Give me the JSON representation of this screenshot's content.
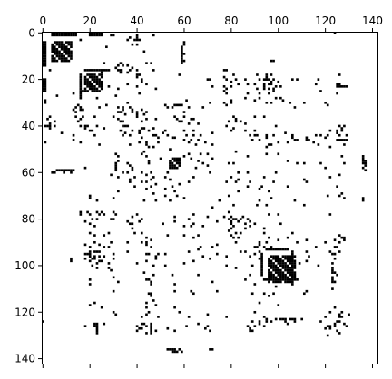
{
  "chart_data": {
    "type": "heatmap",
    "title": "",
    "xlabel": "",
    "ylabel": "",
    "size": 143,
    "xlim": [
      0,
      143
    ],
    "ylim": [
      143,
      0
    ],
    "x_ticks": [
      0,
      20,
      40,
      60,
      80,
      100,
      120,
      140
    ],
    "y_ticks": [
      0,
      20,
      40,
      60,
      80,
      100,
      120,
      140
    ],
    "x_tick_labels": [
      "0",
      "20",
      "40",
      "60",
      "80",
      "100",
      "120",
      "140"
    ],
    "y_tick_labels": [
      "0",
      "20",
      "40",
      "60",
      "80",
      "100",
      "120",
      "140"
    ],
    "x_axis_position": "top",
    "grid": false,
    "colormap": "binary",
    "colors": {
      "filled": "#000000",
      "empty": "#ffffff"
    },
    "dense_blocks": [
      {
        "rows": [
          4,
          12
        ],
        "cols": [
          4,
          12
        ]
      },
      {
        "rows": [
          18,
          24
        ],
        "cols": [
          18,
          25
        ]
      },
      {
        "rows": [
          54,
          58
        ],
        "cols": [
          54,
          58
        ]
      },
      {
        "rows": [
          97,
          107
        ],
        "cols": [
          96,
          107
        ]
      }
    ],
    "bands": [
      {
        "rows": [
          0,
          1
        ],
        "cols": [
          4,
          14
        ]
      },
      {
        "rows": [
          0,
          1
        ],
        "cols": [
          20,
          25
        ]
      },
      {
        "rows": [
          16,
          16
        ],
        "cols": [
          18,
          28
        ]
      },
      {
        "rows": [
          59,
          59
        ],
        "cols": [
          6,
          13
        ]
      },
      {
        "rows": [
          93,
          93
        ],
        "cols": [
          95,
          104
        ]
      },
      {
        "rows": [
          106,
          106
        ],
        "cols": [
          94,
          108
        ]
      },
      {
        "rows": [
          23,
          23
        ],
        "cols": [
          125,
          129
        ]
      },
      {
        "rows": [
          46,
          46
        ],
        "cols": [
          125,
          129
        ]
      }
    ],
    "points": [
      [
        2,
        40
      ],
      [
        3,
        40
      ],
      [
        5,
        60
      ],
      [
        8,
        59
      ],
      [
        9,
        60
      ],
      [
        12,
        60
      ],
      [
        16,
        3
      ],
      [
        16,
        26
      ],
      [
        16,
        33
      ],
      [
        17,
        36
      ],
      [
        18,
        40
      ],
      [
        19,
        40
      ],
      [
        21,
        42
      ],
      [
        20,
        70
      ],
      [
        19,
        95
      ],
      [
        20,
        95
      ],
      [
        22,
        94
      ],
      [
        23,
        94
      ],
      [
        24,
        96
      ],
      [
        25,
        98
      ],
      [
        22,
        126
      ],
      [
        26,
        125
      ],
      [
        18,
        126
      ],
      [
        20,
        96
      ],
      [
        21,
        97
      ],
      [
        23,
        99
      ],
      [
        29,
        1
      ],
      [
        30,
        1
      ],
      [
        27,
        6
      ],
      [
        26,
        13
      ],
      [
        28,
        16
      ],
      [
        25,
        17
      ],
      [
        23,
        28
      ],
      [
        24,
        32
      ],
      [
        22,
        36
      ],
      [
        26,
        41
      ],
      [
        27,
        31
      ],
      [
        23,
        80
      ],
      [
        29,
        80
      ],
      [
        30,
        80
      ],
      [
        28,
        86
      ],
      [
        30,
        36
      ],
      [
        29,
        90
      ],
      [
        21,
        80
      ],
      [
        26,
        87
      ],
      [
        31,
        15
      ],
      [
        32,
        14
      ],
      [
        33,
        13
      ],
      [
        34,
        14
      ],
      [
        32,
        16
      ],
      [
        33,
        17
      ],
      [
        31,
        56
      ],
      [
        31,
        57
      ],
      [
        31,
        58
      ],
      [
        31,
        59
      ],
      [
        32,
        32
      ],
      [
        33,
        34
      ],
      [
        34,
        32
      ],
      [
        35,
        35
      ],
      [
        33,
        38
      ],
      [
        34,
        40
      ],
      [
        33,
        42
      ],
      [
        35,
        43
      ],
      [
        34,
        44
      ],
      [
        36,
        3
      ],
      [
        37,
        2
      ],
      [
        36,
        14
      ],
      [
        37,
        16
      ],
      [
        38,
        15
      ],
      [
        38,
        5
      ],
      [
        39,
        3
      ],
      [
        37,
        32
      ],
      [
        38,
        34
      ],
      [
        36,
        40
      ],
      [
        38,
        42
      ],
      [
        37,
        44
      ],
      [
        36,
        60
      ],
      [
        37,
        64
      ],
      [
        38,
        58
      ],
      [
        39,
        62
      ],
      [
        37,
        82
      ],
      [
        38,
        84
      ],
      [
        39,
        86
      ],
      [
        36,
        90
      ],
      [
        40,
        1
      ],
      [
        40,
        5
      ],
      [
        41,
        3
      ],
      [
        40,
        16
      ],
      [
        41,
        18
      ],
      [
        40,
        23
      ],
      [
        41,
        26
      ],
      [
        40,
        35
      ],
      [
        42,
        38
      ],
      [
        41,
        42
      ],
      [
        43,
        8
      ],
      [
        44,
        13
      ],
      [
        42,
        20
      ],
      [
        44,
        22
      ],
      [
        43,
        41
      ],
      [
        42,
        45
      ],
      [
        44,
        47
      ],
      [
        45,
        49
      ],
      [
        43,
        51
      ],
      [
        44,
        53
      ],
      [
        45,
        56
      ],
      [
        46,
        60
      ],
      [
        44,
        64
      ],
      [
        46,
        66
      ],
      [
        43,
        72
      ],
      [
        44,
        90
      ],
      [
        46,
        92
      ],
      [
        45,
        95
      ],
      [
        47,
        100
      ],
      [
        43,
        103
      ],
      [
        45,
        106
      ],
      [
        46,
        112
      ],
      [
        47,
        115
      ],
      [
        44,
        118
      ],
      [
        42,
        122
      ],
      [
        43,
        125
      ],
      [
        44,
        129
      ],
      [
        46,
        128
      ],
      [
        47,
        1
      ],
      [
        46,
        13
      ],
      [
        47,
        16
      ],
      [
        48,
        24
      ],
      [
        48,
        37
      ],
      [
        47,
        41
      ],
      [
        48,
        44
      ],
      [
        49,
        47
      ],
      [
        47,
        62
      ],
      [
        48,
        65
      ],
      [
        47,
        69
      ],
      [
        48,
        72
      ],
      [
        49,
        95
      ],
      [
        48,
        97
      ],
      [
        47,
        104
      ],
      [
        46,
        108
      ],
      [
        49,
        122
      ],
      [
        52,
        31
      ],
      [
        53,
        32
      ],
      [
        55,
        32
      ],
      [
        57,
        31
      ],
      [
        52,
        42
      ],
      [
        53,
        44
      ],
      [
        56,
        36
      ],
      [
        57,
        37
      ],
      [
        55,
        45
      ],
      [
        54,
        50
      ],
      [
        53,
        60
      ],
      [
        52,
        62
      ],
      [
        55,
        66
      ],
      [
        54,
        72
      ],
      [
        56,
        68
      ],
      [
        57,
        70
      ],
      [
        53,
        87
      ],
      [
        52,
        100
      ],
      [
        55,
        104
      ],
      [
        56,
        108
      ],
      [
        54,
        136
      ],
      [
        55,
        137
      ],
      [
        56,
        136
      ],
      [
        59,
        6
      ],
      [
        60,
        4
      ],
      [
        58,
        18
      ],
      [
        59,
        38
      ],
      [
        60,
        34
      ],
      [
        61,
        29
      ],
      [
        60,
        42
      ],
      [
        61,
        44
      ],
      [
        62,
        32
      ],
      [
        63,
        37
      ],
      [
        64,
        42
      ],
      [
        63,
        46
      ],
      [
        63,
        54
      ],
      [
        65,
        58
      ],
      [
        64,
        62
      ],
      [
        62,
        80
      ],
      [
        63,
        83
      ],
      [
        63,
        111
      ],
      [
        66,
        39
      ],
      [
        67,
        44
      ],
      [
        68,
        32
      ],
      [
        67,
        52
      ],
      [
        68,
        56
      ],
      [
        66,
        87
      ],
      [
        67,
        92
      ],
      [
        68,
        96
      ],
      [
        66,
        104
      ],
      [
        71,
        20
      ],
      [
        72,
        23
      ],
      [
        71,
        30
      ],
      [
        70,
        52
      ],
      [
        71,
        60
      ],
      [
        72,
        75
      ],
      [
        70,
        79
      ],
      [
        71,
        97
      ],
      [
        72,
        107
      ],
      [
        71,
        136
      ],
      [
        77,
        16
      ],
      [
        78,
        16
      ],
      [
        77,
        19
      ],
      [
        78,
        20
      ],
      [
        77,
        23
      ],
      [
        78,
        24
      ],
      [
        77,
        25
      ],
      [
        78,
        26
      ],
      [
        77,
        30
      ],
      [
        78,
        31
      ],
      [
        79,
        38
      ],
      [
        78,
        40
      ],
      [
        80,
        42
      ],
      [
        79,
        56
      ],
      [
        80,
        62
      ],
      [
        78,
        64
      ],
      [
        79,
        77
      ],
      [
        80,
        81
      ],
      [
        79,
        85
      ],
      [
        80,
        82
      ],
      [
        81,
        83
      ],
      [
        82,
        86
      ],
      [
        81,
        88
      ],
      [
        82,
        90
      ],
      [
        79,
        80
      ],
      [
        80,
        84
      ],
      [
        81,
        18
      ],
      [
        82,
        20
      ],
      [
        83,
        22
      ],
      [
        81,
        36
      ],
      [
        82,
        38
      ],
      [
        81,
        41
      ],
      [
        82,
        51
      ],
      [
        81,
        56
      ],
      [
        83,
        60
      ],
      [
        82,
        64
      ],
      [
        83,
        68
      ],
      [
        81,
        74
      ],
      [
        83,
        88
      ],
      [
        84,
        94
      ],
      [
        86,
        20
      ],
      [
        87,
        22
      ],
      [
        86,
        42
      ],
      [
        88,
        44
      ],
      [
        89,
        46
      ],
      [
        87,
        60
      ],
      [
        88,
        64
      ],
      [
        87,
        80
      ],
      [
        86,
        84
      ],
      [
        88,
        96
      ],
      [
        89,
        100
      ],
      [
        88,
        104
      ],
      [
        87,
        126
      ],
      [
        88,
        128
      ],
      [
        89,
        124
      ],
      [
        91,
        18
      ],
      [
        92,
        20
      ],
      [
        90,
        22
      ],
      [
        91,
        24
      ],
      [
        92,
        26
      ],
      [
        92,
        28
      ],
      [
        90,
        42
      ],
      [
        91,
        44
      ],
      [
        92,
        72
      ],
      [
        91,
        74
      ],
      [
        92,
        90
      ],
      [
        91,
        92
      ],
      [
        92,
        94
      ],
      [
        90,
        108
      ],
      [
        89,
        112
      ],
      [
        92,
        124
      ],
      [
        94,
        20
      ],
      [
        95,
        18
      ],
      [
        94,
        24
      ],
      [
        96,
        22
      ],
      [
        96,
        26
      ],
      [
        95,
        30
      ],
      [
        94,
        36
      ],
      [
        95,
        44
      ],
      [
        96,
        48
      ],
      [
        95,
        52
      ],
      [
        94,
        62
      ],
      [
        93,
        66
      ],
      [
        95,
        74
      ],
      [
        96,
        78
      ],
      [
        94,
        86
      ],
      [
        95,
        90
      ],
      [
        96,
        93
      ],
      [
        95,
        124
      ],
      [
        94,
        126
      ],
      [
        97,
        12
      ],
      [
        98,
        12
      ],
      [
        97,
        18
      ],
      [
        98,
        20
      ],
      [
        97,
        22
      ],
      [
        98,
        24
      ],
      [
        99,
        28
      ],
      [
        97,
        30
      ],
      [
        99,
        40
      ],
      [
        98,
        44
      ],
      [
        99,
        60
      ],
      [
        98,
        64
      ],
      [
        97,
        92
      ],
      [
        98,
        96
      ],
      [
        99,
        109
      ],
      [
        98,
        112
      ],
      [
        99,
        123
      ],
      [
        100,
        21
      ],
      [
        101,
        23
      ],
      [
        101,
        28
      ],
      [
        102,
        29
      ],
      [
        100,
        78
      ],
      [
        101,
        82
      ],
      [
        102,
        123
      ],
      [
        103,
        124
      ],
      [
        104,
        125
      ],
      [
        105,
        123
      ],
      [
        105,
        30
      ],
      [
        106,
        20
      ],
      [
        107,
        32
      ],
      [
        108,
        20
      ],
      [
        106,
        44
      ],
      [
        107,
        46
      ],
      [
        108,
        56
      ],
      [
        106,
        86
      ],
      [
        107,
        124
      ],
      [
        111,
        30
      ],
      [
        112,
        45
      ],
      [
        113,
        46
      ],
      [
        111,
        56
      ],
      [
        112,
        64
      ],
      [
        111,
        74
      ],
      [
        112,
        94
      ],
      [
        113,
        96
      ],
      [
        111,
        112
      ],
      [
        116,
        22
      ],
      [
        117,
        20
      ],
      [
        118,
        25
      ],
      [
        116,
        44
      ],
      [
        117,
        48
      ],
      [
        118,
        56
      ],
      [
        116,
        92
      ],
      [
        117,
        100
      ],
      [
        118,
        124
      ],
      [
        120,
        30
      ],
      [
        121,
        31
      ],
      [
        120,
        45
      ],
      [
        121,
        44
      ],
      [
        120,
        58
      ],
      [
        122,
        62
      ],
      [
        121,
        70
      ],
      [
        122,
        78
      ],
      [
        120,
        90
      ],
      [
        122,
        94
      ],
      [
        120,
        122
      ],
      [
        121,
        126
      ],
      [
        122,
        127
      ],
      [
        121,
        130
      ],
      [
        123,
        95
      ],
      [
        123,
        101
      ],
      [
        123,
        102
      ],
      [
        123,
        103
      ],
      [
        123,
        105
      ],
      [
        123,
        106
      ],
      [
        123,
        107
      ],
      [
        123,
        110
      ],
      [
        124,
        0
      ],
      [
        124,
        97
      ],
      [
        124,
        126
      ],
      [
        125,
        22
      ],
      [
        126,
        23
      ],
      [
        125,
        26
      ],
      [
        125,
        42
      ],
      [
        126,
        44
      ],
      [
        125,
        66
      ],
      [
        126,
        70
      ],
      [
        124,
        125
      ],
      [
        125,
        124
      ],
      [
        126,
        122
      ],
      [
        127,
        120
      ],
      [
        126,
        40
      ],
      [
        127,
        41
      ],
      [
        127,
        42
      ],
      [
        128,
        40
      ],
      [
        127,
        46
      ],
      [
        128,
        48
      ],
      [
        127,
        53
      ],
      [
        128,
        56
      ],
      [
        126,
        61
      ],
      [
        127,
        69
      ],
      [
        128,
        71
      ],
      [
        125,
        92
      ],
      [
        126,
        90
      ],
      [
        127,
        88
      ],
      [
        128,
        89
      ],
      [
        125,
        128
      ],
      [
        126,
        129
      ],
      [
        136,
        53
      ],
      [
        136,
        54
      ],
      [
        136,
        55
      ],
      [
        137,
        56
      ],
      [
        137,
        57
      ],
      [
        136,
        58
      ],
      [
        137,
        59
      ],
      [
        136,
        72
      ]
    ]
  }
}
